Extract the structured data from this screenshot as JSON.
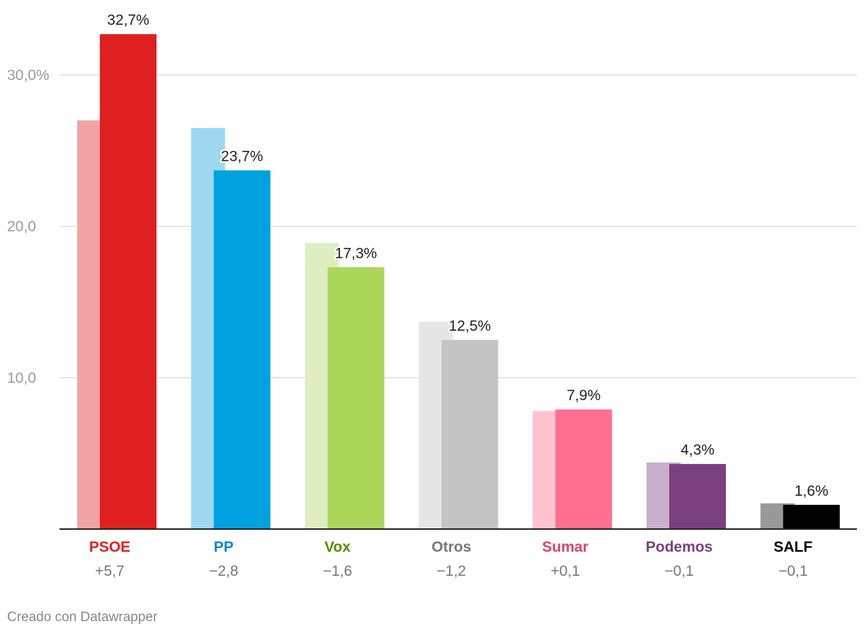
{
  "chart_data": {
    "type": "bar",
    "categories": [
      "PSOE",
      "PP",
      "Vox",
      "Otros",
      "Sumar",
      "Podemos",
      "SALF"
    ],
    "series": [
      {
        "values": [
          27.0,
          26.5,
          18.9,
          13.7,
          7.8,
          4.4,
          1.7
        ],
        "colors": [
          "#f2a4a4",
          "#9dd8f0",
          "#dfeec0",
          "#e6e6e6",
          "#ffc3d0",
          "#c8afcc",
          "#999999"
        ]
      },
      {
        "values": [
          32.7,
          23.7,
          17.3,
          12.5,
          7.9,
          4.3,
          1.6
        ],
        "colors": [
          "#e02020",
          "#00a1de",
          "#acd65a",
          "#c4c4c4",
          "#ff6f8f",
          "#7b3f80",
          "#000000"
        ]
      }
    ],
    "value_labels": [
      "32,7%",
      "23,7%",
      "17,3%",
      "12,5%",
      "7,9%",
      "4,3%",
      "1,6%"
    ],
    "changes": [
      "+5,7",
      "−2,8",
      "−1,6",
      "−1,2",
      "+0,1",
      "−0,1",
      "−0,1"
    ],
    "category_colors": [
      "#e02020",
      "#0a8ac5",
      "#5a8a00",
      "#777777",
      "#d9456b",
      "#7b3f80",
      "#000000"
    ],
    "yticks": [
      10,
      20,
      30
    ],
    "ytick_labels": [
      "10,0",
      "20,0",
      "30,0%"
    ],
    "ylim": [
      0,
      35
    ],
    "grid": true,
    "grid_color": "#dddddd"
  },
  "footer": {
    "credit": "Creado con Datawrapper"
  }
}
